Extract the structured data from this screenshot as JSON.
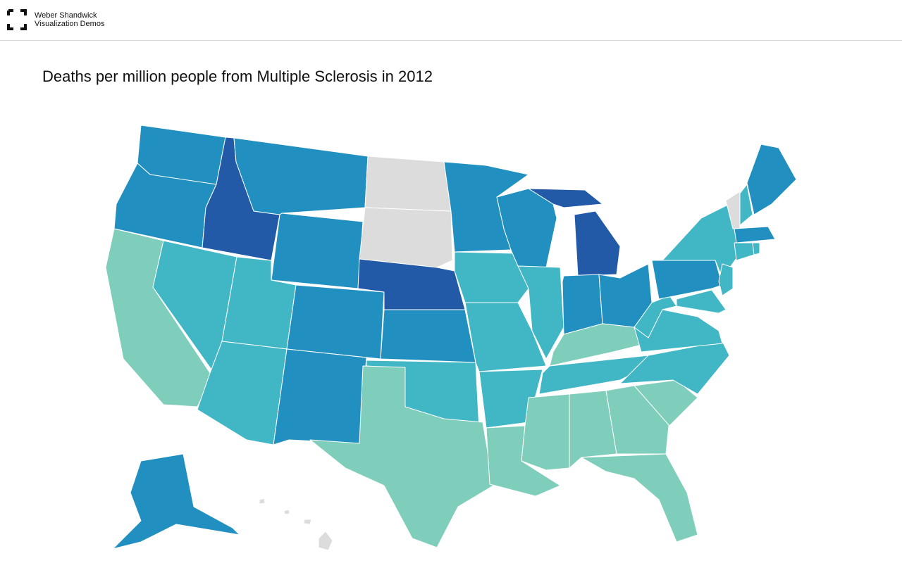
{
  "header": {
    "brand_line1": "Weber Shandwick",
    "brand_line2": "Visualization Demos"
  },
  "title": "Deaths per million people from Multiple Sclerosis in 2012"
}
